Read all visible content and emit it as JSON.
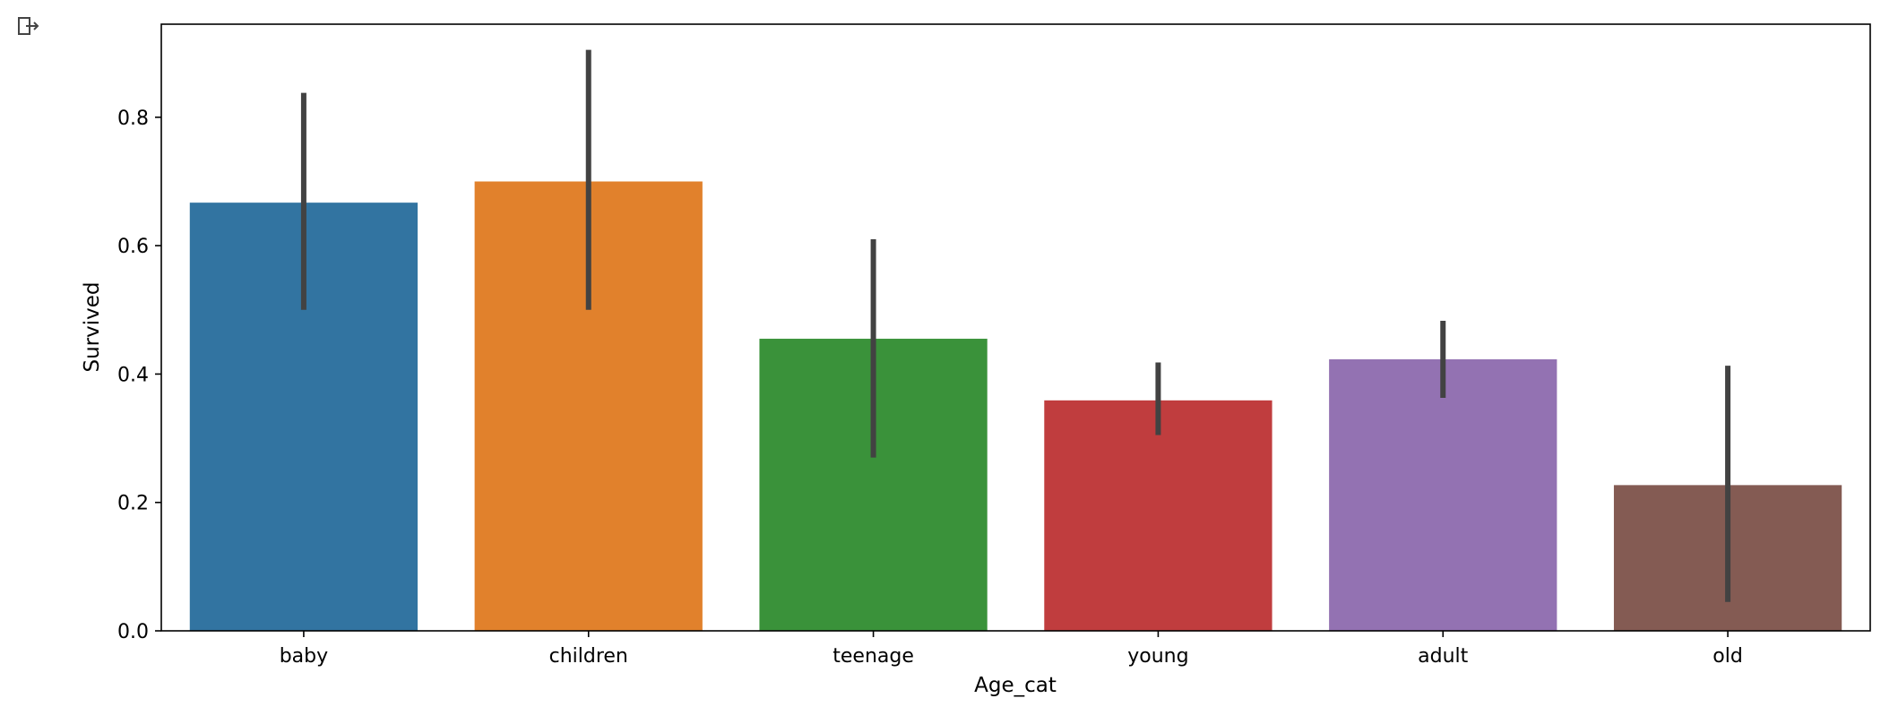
{
  "output_icon": "output-arrow-icon",
  "chart_data": {
    "type": "bar",
    "xlabel": "Age_cat",
    "ylabel": "Survived",
    "categories": [
      "baby",
      "children",
      "teenage",
      "young",
      "adult",
      "old"
    ],
    "values": [
      0.667,
      0.7,
      0.455,
      0.359,
      0.423,
      0.227
    ],
    "error_low": [
      0.5,
      0.5,
      0.27,
      0.305,
      0.363,
      0.045
    ],
    "error_high": [
      0.838,
      0.905,
      0.61,
      0.418,
      0.483,
      0.413
    ],
    "colors": [
      "#3274a1",
      "#e1812c",
      "#3a923a",
      "#c03d3e",
      "#9372b2",
      "#845b53"
    ],
    "error_color": "#424242",
    "ylim": [
      0,
      0.945
    ],
    "yticks": [
      0.0,
      0.2,
      0.4,
      0.6,
      0.8
    ],
    "ytick_labels": [
      "0.0",
      "0.2",
      "0.4",
      "0.6",
      "0.8"
    ],
    "grid": false,
    "legend": "none"
  }
}
